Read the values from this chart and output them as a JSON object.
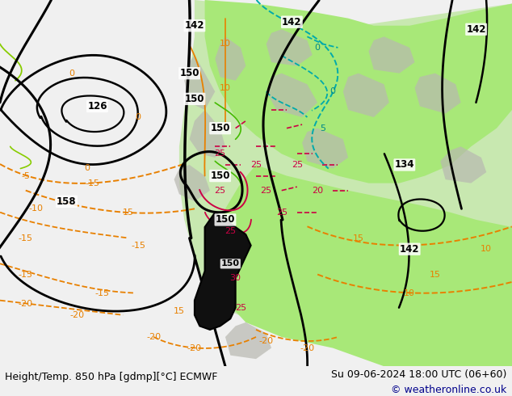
{
  "title_left": "Height/Temp. 850 hPa [gdmp][°C] ECMWF",
  "title_right": "Su 09-06-2024 18:00 UTC (06+60)",
  "copyright": "© weatheronline.co.uk",
  "bg_color": "#f0f0f0",
  "ocean_color": "#d8d8d8",
  "land_green_color": "#c8e8b0",
  "land_bright_green": "#a8e878",
  "land_gray": "#b8b8b0",
  "bottom_bar_color": "#e0e0e0",
  "text_color": "#000000",
  "copyright_color": "#00008b",
  "figsize": [
    6.34,
    4.9
  ],
  "dpi": 100,
  "bottom_bar_height": 0.075,
  "font_size_bottom": 9.0,
  "font_size_copyright": 9.0
}
